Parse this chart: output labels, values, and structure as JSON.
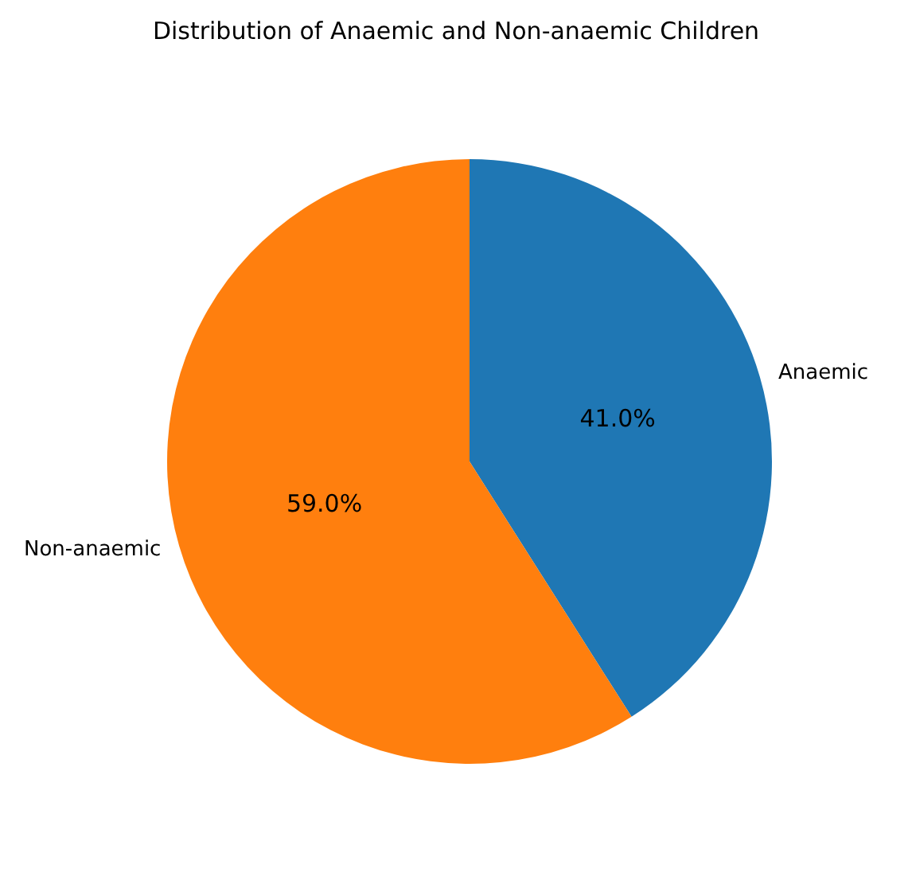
{
  "chart_data": {
    "type": "pie",
    "title": "Distribution of Anaemic and Non-anaemic Children",
    "categories": [
      "Anaemic",
      "Non-anaemic"
    ],
    "values": [
      41,
      59
    ],
    "colors": [
      "#1f77b4",
      "#ff7f0e"
    ],
    "value_labels": [
      "41.0%",
      "59.0%"
    ],
    "legend": false
  }
}
